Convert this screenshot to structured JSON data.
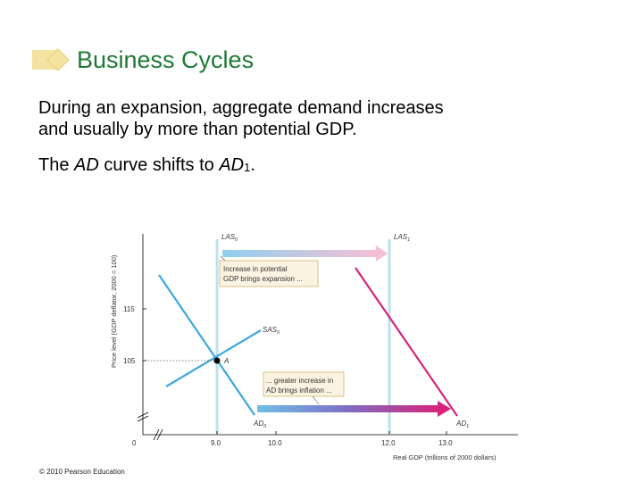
{
  "title": "Business Cycles",
  "body": {
    "line1": "During an expansion, aggregate demand increases",
    "line2": "and usually by more than potential GDP.",
    "line3_a": "The ",
    "line3_b": "AD",
    "line3_c": " curve shifts to ",
    "line3_d": "AD",
    "line3_e": "1",
    "line3_f": "."
  },
  "graph": {
    "y_axis_label": "Price level (GDP deflator, 2000 = 100)",
    "x_axis_label": "Real GDP (trillions of 2000 dollars)",
    "y_ticks": [
      "115",
      "105"
    ],
    "x_ticks": [
      "0",
      "9.0",
      "10.0",
      "12.0",
      "13.0"
    ],
    "curve_labels": {
      "las0": "LAS",
      "las0_sub": "0",
      "las1": "LAS",
      "las1_sub": "1",
      "sas0": "SAS",
      "sas0_sub": "0",
      "ad0": "AD",
      "ad0_sub": "0",
      "ad1": "AD",
      "ad1_sub": "1",
      "point_a": "A"
    },
    "annotation_potential": [
      "Increase in potential",
      "GDP brings expansion ..."
    ],
    "annotation_inflation": [
      "... greater increase in",
      "AD brings inflation ..."
    ],
    "colors": {
      "las": "#bfe0ee",
      "sas": "#3ba9dc",
      "ad1": "#d6247a",
      "arrow_blue": "#7ec4e6",
      "arrow_pink": "#f4b9d2",
      "box_border": "#d6b26b",
      "box_fill": "#fbf3e2"
    }
  },
  "copyright": "© 2010 Pearson Education"
}
